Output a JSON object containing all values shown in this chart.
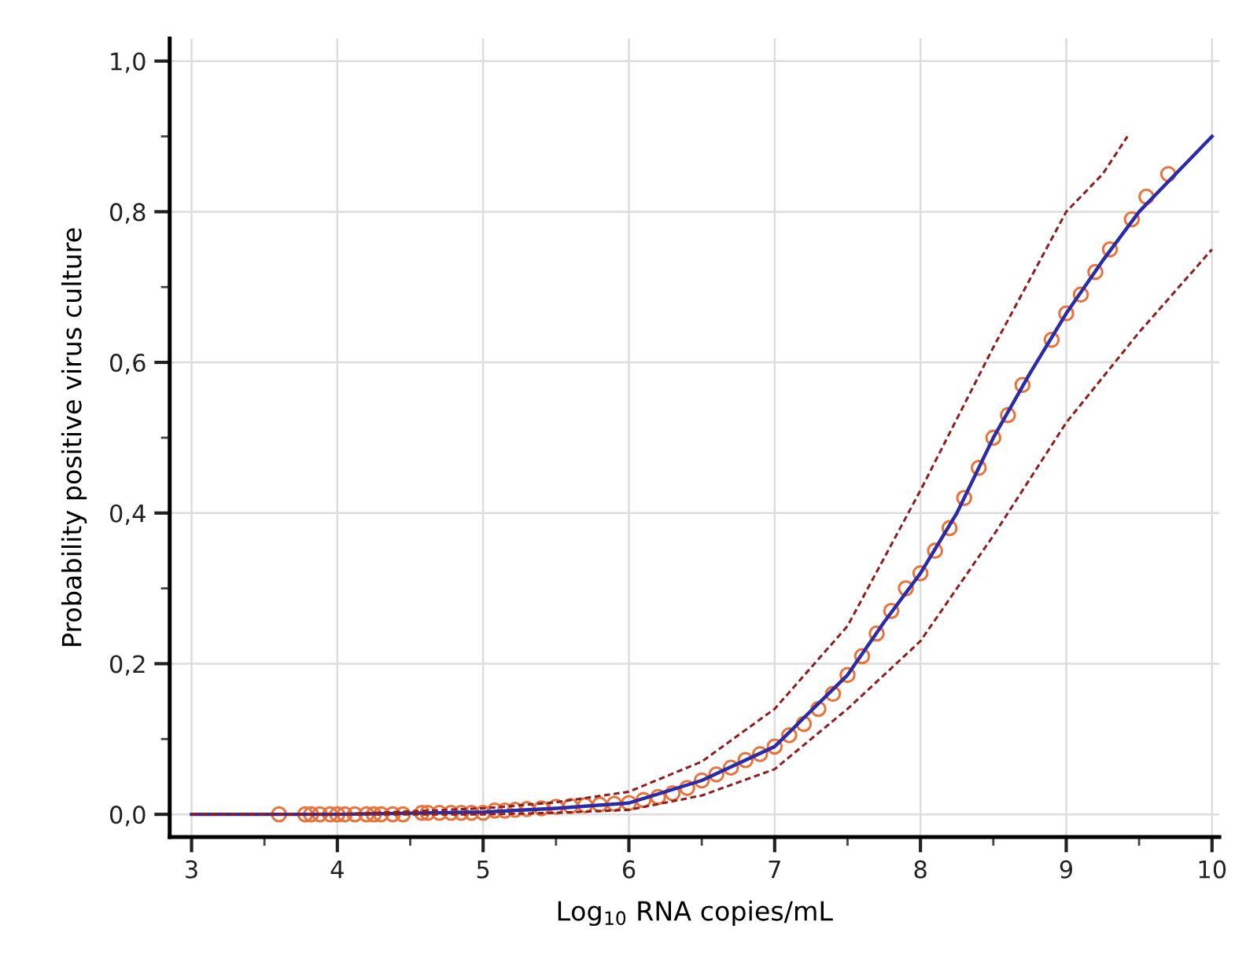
{
  "chart_data": {
    "type": "line",
    "xlabel": "Log$_{10}$ RNA copies/mL",
    "ylabel": "Probability positive virus culture",
    "xlim": [
      2.85,
      10.05
    ],
    "ylim": [
      -0.03,
      1.03
    ],
    "xticks": [
      3,
      {
        "value": 3.5,
        "label": null
      },
      4,
      {
        "value": 4.5,
        "label": null
      },
      5,
      {
        "value": 5.5,
        "label": null
      },
      6,
      {
        "value": 6.5,
        "label": null
      },
      7,
      {
        "value": 7.5,
        "label": null
      },
      8,
      {
        "value": 8.5,
        "label": null
      },
      9,
      {
        "value": 9.5,
        "label": null
      },
      10
    ],
    "yticks": [
      {
        "value": 0,
        "label": "0,0"
      },
      {
        "value": 0.1,
        "label": null
      },
      {
        "value": 0.2,
        "label": "0,2"
      },
      {
        "value": 0.3,
        "label": null
      },
      {
        "value": 0.4,
        "label": "0,4"
      },
      {
        "value": 0.5,
        "label": null
      },
      {
        "value": 0.6,
        "label": "0,6"
      },
      {
        "value": 0.7,
        "label": null
      },
      {
        "value": 0.8,
        "label": "0,8"
      },
      {
        "value": 0.9,
        "label": null
      },
      {
        "value": 1.0,
        "label": "1,0"
      }
    ],
    "grid": true,
    "series": [
      {
        "type": "scatter",
        "marker": "circle",
        "color": "#e8743b",
        "x": [
          3.6,
          3.78,
          3.82,
          3.88,
          3.95,
          4.0,
          4.05,
          4.12,
          4.2,
          4.25,
          4.3,
          4.38,
          4.45,
          4.58,
          4.62,
          4.7,
          4.78,
          4.85,
          4.92,
          5.0,
          5.08,
          5.15,
          5.22,
          5.3,
          5.4,
          5.5,
          5.6,
          5.7,
          5.8,
          5.9,
          6.0,
          6.1,
          6.2,
          6.3,
          6.4,
          6.5,
          6.6,
          6.7,
          6.8,
          6.9,
          7.0,
          7.1,
          7.2,
          7.3,
          7.4,
          7.5,
          7.6,
          7.7,
          7.8,
          7.9,
          8.0,
          8.1,
          8.2,
          8.3,
          8.4,
          8.5,
          8.6,
          8.7,
          8.9,
          9.0,
          9.1,
          9.2,
          9.3,
          9.45,
          9.55,
          9.7
        ],
        "values": [
          0,
          0,
          0,
          0,
          0,
          0,
          0,
          0,
          0,
          0,
          0,
          0,
          0,
          0.002,
          0.002,
          0.002,
          0.002,
          0.002,
          0.002,
          0.002,
          0.005,
          0.005,
          0.006,
          0.007,
          0.008,
          0.01,
          0.011,
          0.012,
          0.013,
          0.014,
          0.015,
          0.019,
          0.023,
          0.028,
          0.035,
          0.045,
          0.053,
          0.062,
          0.072,
          0.08,
          0.09,
          0.105,
          0.12,
          0.14,
          0.16,
          0.185,
          0.21,
          0.24,
          0.27,
          0.3,
          0.32,
          0.35,
          0.38,
          0.42,
          0.46,
          0.5,
          0.53,
          0.57,
          0.63,
          0.665,
          0.69,
          0.72,
          0.75,
          0.79,
          0.82,
          0.85
        ]
      },
      {
        "line_style": "solid",
        "color": "#2b2ba8",
        "x": [
          3,
          4,
          5,
          5.5,
          6,
          6.5,
          7,
          7.5,
          7.75,
          8,
          8.25,
          8.5,
          8.75,
          9,
          9.25,
          9.5,
          10
        ],
        "values": [
          0,
          0,
          0.003,
          0.008,
          0.015,
          0.045,
          0.09,
          0.185,
          0.255,
          0.32,
          0.4,
          0.5,
          0.585,
          0.665,
          0.735,
          0.8,
          0.9
        ]
      },
      {
        "line_style": "dashed",
        "color": "#8b2020",
        "x": [
          3,
          4,
          5,
          5.5,
          6,
          6.5,
          7,
          7.5,
          8,
          8.5,
          9,
          9.25,
          9.42
        ],
        "values": [
          0,
          0,
          0.008,
          0.016,
          0.03,
          0.07,
          0.14,
          0.25,
          0.43,
          0.62,
          0.8,
          0.85,
          0.9
        ]
      },
      {
        "line_style": "dashed",
        "color": "#8b2020",
        "x": [
          3,
          4,
          5,
          5.5,
          6,
          6.5,
          7,
          7.5,
          8,
          8.5,
          9,
          9.5,
          10
        ],
        "values": [
          0,
          0,
          0,
          0.002,
          0.006,
          0.025,
          0.06,
          0.14,
          0.23,
          0.37,
          0.52,
          0.64,
          0.75
        ]
      }
    ]
  }
}
